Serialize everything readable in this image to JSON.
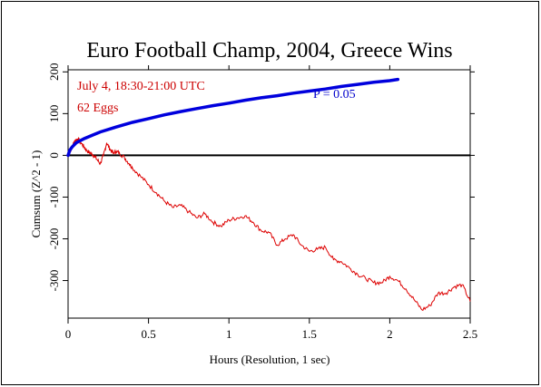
{
  "chart_data": {
    "type": "line",
    "title": "Euro Football Champ, 2004, Greece Wins",
    "xlabel": "Hours (Resolution, 1 sec)",
    "ylabel": "Cumsum (Z^2 - 1)",
    "xlim": [
      0,
      2.5
    ],
    "ylim": [
      -390,
      205
    ],
    "x_ticks": [
      0,
      0.5,
      1,
      1.5,
      2,
      2.5
    ],
    "x_tick_labels": [
      "0",
      "0.5",
      "1",
      "1.5",
      "2",
      "2.5"
    ],
    "y_ticks": [
      -300,
      -200,
      -100,
      0,
      100,
      200
    ],
    "y_tick_labels": [
      "-300",
      "-200",
      "-100",
      "0",
      "100",
      "200"
    ],
    "annotations": [
      {
        "text": "July 4, 18:30-21:00 UTC",
        "color": "#cc0000"
      },
      {
        "text": "62 Eggs",
        "color": "#cc0000"
      },
      {
        "text": "P = 0.05",
        "color": "#0000cc"
      }
    ],
    "baseline": {
      "y": 0,
      "color": "#000000"
    },
    "series": [
      {
        "color": "#dd0000",
        "x": [
          0,
          0.02,
          0.04,
          0.06,
          0.08,
          0.1,
          0.12,
          0.14,
          0.16,
          0.18,
          0.2,
          0.22,
          0.24,
          0.26,
          0.28,
          0.3,
          0.32,
          0.35,
          0.38,
          0.4,
          0.45,
          0.5,
          0.55,
          0.6,
          0.65,
          0.7,
          0.75,
          0.8,
          0.85,
          0.9,
          0.95,
          1.0,
          1.05,
          1.1,
          1.15,
          1.2,
          1.25,
          1.3,
          1.35,
          1.4,
          1.45,
          1.5,
          1.55,
          1.6,
          1.65,
          1.7,
          1.75,
          1.8,
          1.85,
          1.9,
          1.95,
          2.0,
          2.05,
          2.1,
          2.15,
          2.2,
          2.25,
          2.3,
          2.35,
          2.4,
          2.45,
          2.5
        ],
        "values": [
          0,
          15,
          35,
          40,
          30,
          20,
          10,
          5,
          0,
          -10,
          -20,
          0,
          30,
          15,
          5,
          10,
          5,
          -5,
          -20,
          -30,
          -50,
          -70,
          -90,
          -110,
          -125,
          -120,
          -135,
          -150,
          -140,
          -160,
          -170,
          -155,
          -150,
          -145,
          -160,
          -180,
          -185,
          -215,
          -200,
          -190,
          -215,
          -230,
          -225,
          -220,
          -250,
          -255,
          -270,
          -285,
          -295,
          -305,
          -305,
          -290,
          -300,
          -320,
          -345,
          -370,
          -360,
          -330,
          -330,
          -315,
          -310,
          -350
        ]
      },
      {
        "name": "P = 0.05",
        "color": "#0000dd",
        "x": [
          0,
          0.01,
          0.025,
          0.05,
          0.1,
          0.15,
          0.2,
          0.3,
          0.4,
          0.5,
          0.6,
          0.7,
          0.8,
          0.9,
          1.0,
          1.1,
          1.2,
          1.3,
          1.4,
          1.5,
          1.6,
          1.7,
          1.8,
          1.9,
          2.0,
          2.05
        ],
        "values": [
          0,
          12,
          20,
          30,
          40,
          48,
          56,
          68,
          79,
          88,
          97,
          105,
          112,
          119,
          125,
          132,
          138,
          143,
          149,
          154,
          159,
          165,
          170,
          175,
          179,
          182
        ]
      }
    ]
  }
}
